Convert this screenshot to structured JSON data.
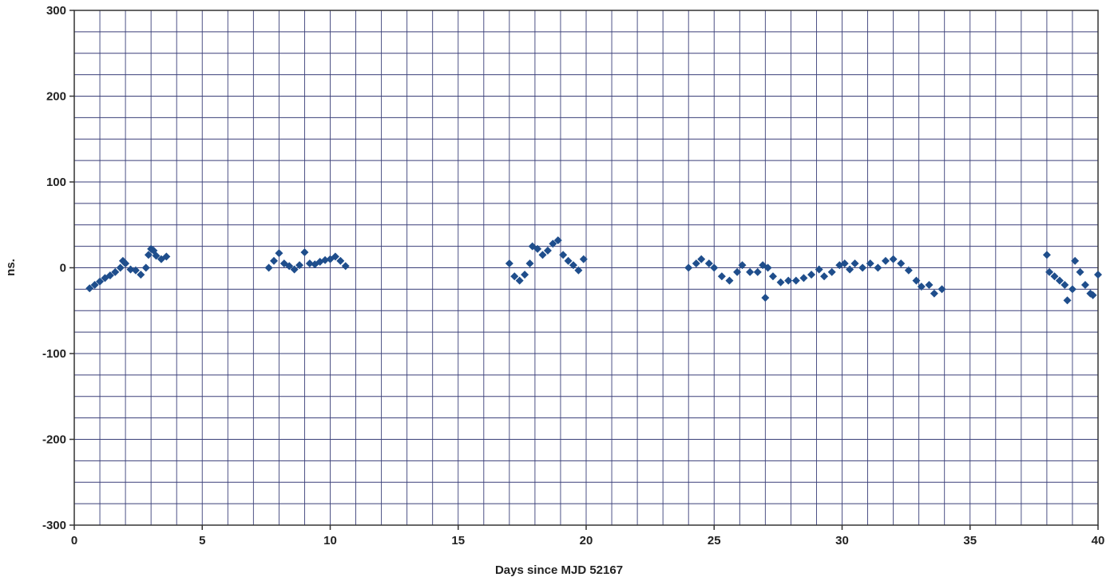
{
  "chart_data": {
    "type": "scatter",
    "x_label": "Days since MJD 52167",
    "y_label": "ns.",
    "color": "#1f4e8c",
    "grid": true,
    "xlim": [
      0,
      40
    ],
    "ylim": [
      -300,
      300
    ],
    "xticks": [
      0,
      5,
      10,
      15,
      20,
      25,
      30,
      35,
      40
    ],
    "yticks": [
      -300,
      -200,
      -100,
      0,
      100,
      200,
      300
    ],
    "xminor_ticks": [
      0,
      1,
      2,
      3,
      4,
      5,
      6,
      7,
      8,
      9,
      10,
      11,
      12,
      13,
      14,
      15,
      16,
      17,
      18,
      19,
      20,
      21,
      22,
      23,
      24,
      25,
      26,
      27,
      28,
      29,
      30,
      31,
      32,
      33,
      34,
      35,
      36,
      37,
      38,
      39,
      40
    ],
    "yminor_ticks": [
      -300,
      -275,
      -250,
      -225,
      -200,
      -175,
      -150,
      -125,
      -100,
      -75,
      -50,
      -25,
      0,
      25,
      50,
      75,
      100,
      125,
      150,
      175,
      200,
      225,
      250,
      275,
      300
    ],
    "x": [
      0.6,
      0.8,
      1.0,
      1.2,
      1.4,
      1.6,
      1.8,
      1.9,
      2.0,
      2.2,
      2.4,
      2.6,
      2.8,
      2.9,
      3.0,
      3.1,
      3.2,
      3.4,
      3.6,
      7.6,
      7.8,
      8.0,
      8.2,
      8.4,
      8.6,
      8.8,
      9.0,
      9.2,
      9.4,
      9.6,
      9.8,
      10.0,
      10.2,
      10.4,
      10.6,
      17.0,
      17.2,
      17.4,
      17.6,
      17.8,
      17.9,
      18.1,
      18.3,
      18.5,
      18.7,
      18.9,
      19.1,
      19.3,
      19.5,
      19.7,
      19.9,
      24.0,
      24.3,
      24.5,
      24.8,
      25.0,
      25.3,
      25.6,
      25.9,
      26.1,
      26.4,
      26.7,
      26.9,
      27.0,
      27.1,
      27.3,
      27.6,
      27.9,
      28.2,
      28.5,
      28.8,
      29.1,
      29.3,
      29.6,
      29.9,
      30.1,
      30.3,
      30.5,
      30.8,
      31.1,
      31.4,
      31.7,
      32.0,
      32.3,
      32.6,
      32.9,
      33.1,
      33.4,
      33.6,
      33.9,
      38.0,
      38.1,
      38.3,
      38.5,
      38.7,
      38.8,
      39.0,
      39.1,
      39.3,
      39.5,
      39.7,
      39.8,
      40.0
    ],
    "values": [
      -24,
      -20,
      -16,
      -12,
      -9,
      -5,
      0,
      8,
      5,
      -2,
      -3,
      -8,
      0,
      15,
      22,
      20,
      14,
      10,
      13,
      0,
      8,
      17,
      5,
      2,
      -2,
      3,
      18,
      5,
      4,
      7,
      9,
      10,
      13,
      8,
      2,
      5,
      -10,
      -15,
      -8,
      5,
      25,
      22,
      15,
      20,
      28,
      32,
      15,
      8,
      3,
      -3,
      10,
      0,
      5,
      10,
      5,
      0,
      -10,
      -15,
      -5,
      3,
      -5,
      -5,
      3,
      -35,
      0,
      -10,
      -17,
      -15,
      -15,
      -12,
      -8,
      -2,
      -10,
      -5,
      3,
      5,
      -2,
      5,
      0,
      5,
      0,
      8,
      10,
      5,
      -3,
      -15,
      -22,
      -20,
      -30,
      -25,
      15,
      -5,
      -10,
      -15,
      -20,
      -38,
      -25,
      8,
      -5,
      -20,
      -30,
      -32,
      -8
    ]
  }
}
